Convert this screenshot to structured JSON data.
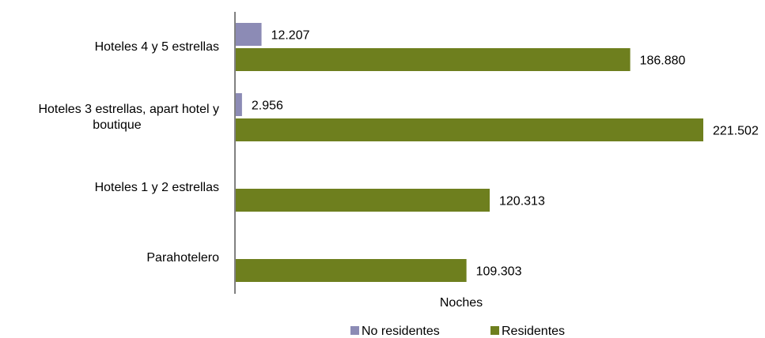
{
  "chart_data": {
    "type": "bar",
    "orientation": "horizontal",
    "categories": [
      [
        "Hoteles 4 y 5 estrellas"
      ],
      [
        "Hoteles 3 estrellas, apart hotel y",
        "boutique"
      ],
      [
        "Hoteles 1 y 2 estrellas"
      ],
      [
        "Parahotelero"
      ]
    ],
    "series": [
      {
        "name": "No residentes",
        "color": "#8c8bb5",
        "values": [
          12207,
          2956,
          null,
          null
        ],
        "labels": [
          "12.207",
          "2.956",
          "",
          ""
        ]
      },
      {
        "name": "Residentes",
        "color": "#6e7f1e",
        "values": [
          186880,
          221502,
          120313,
          109303
        ],
        "labels": [
          "186.880",
          "221.502",
          "120.313",
          "109.303"
        ]
      }
    ],
    "xlabel": "Noches",
    "xlim": [
      0,
      221502
    ],
    "grid": false,
    "legend_position": "bottom"
  }
}
